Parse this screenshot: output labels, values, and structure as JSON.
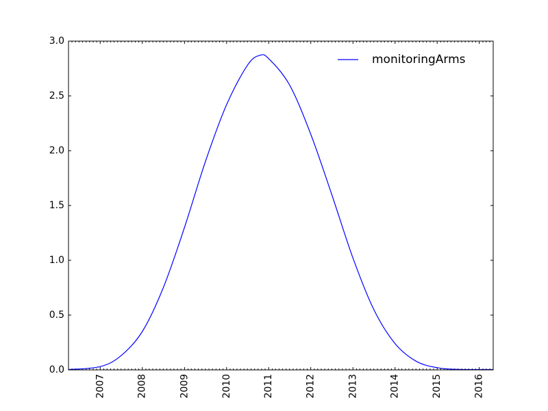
{
  "chart_data": {
    "type": "line",
    "title": "",
    "xlabel": "",
    "ylabel": "",
    "x_axis": {
      "type": "date",
      "range": [
        "2006-04-01",
        "2016-05-01"
      ],
      "tick_labels": [
        "2007",
        "2008",
        "2009",
        "2010",
        "2011",
        "2012",
        "2013",
        "2014",
        "2015",
        "2016"
      ],
      "tick_label_rotation": "vertical"
    },
    "y_axis": {
      "range": [
        0.0,
        3.0
      ],
      "tick_values": [
        0.0,
        0.5,
        1.0,
        1.5,
        2.0,
        2.5,
        3.0
      ],
      "tick_labels": [
        "0.0",
        "0.5",
        "1.0",
        "1.5",
        "2.0",
        "2.5",
        "3.0"
      ]
    },
    "grid": false,
    "legend": {
      "placement": "top-right",
      "frame": false
    },
    "series": [
      {
        "name": "monitoringArms",
        "color": "#0000ff",
        "points": [
          [
            "2006-04-01",
            0.0
          ],
          [
            "2007-01-01",
            0.03
          ],
          [
            "2007-07-01",
            0.13
          ],
          [
            "2008-01-01",
            0.35
          ],
          [
            "2008-07-01",
            0.75
          ],
          [
            "2009-01-01",
            1.3
          ],
          [
            "2009-07-01",
            1.9
          ],
          [
            "2010-01-01",
            2.42
          ],
          [
            "2010-07-01",
            2.78
          ],
          [
            "2010-10-15",
            2.87
          ],
          [
            "2011-01-01",
            2.84
          ],
          [
            "2011-07-01",
            2.6
          ],
          [
            "2012-01-01",
            2.15
          ],
          [
            "2012-07-01",
            1.6
          ],
          [
            "2013-01-01",
            1.02
          ],
          [
            "2013-07-01",
            0.55
          ],
          [
            "2014-01-01",
            0.24
          ],
          [
            "2014-07-01",
            0.08
          ],
          [
            "2015-01-01",
            0.02
          ],
          [
            "2015-07-01",
            0.005
          ],
          [
            "2016-05-01",
            0.0
          ]
        ]
      }
    ]
  }
}
